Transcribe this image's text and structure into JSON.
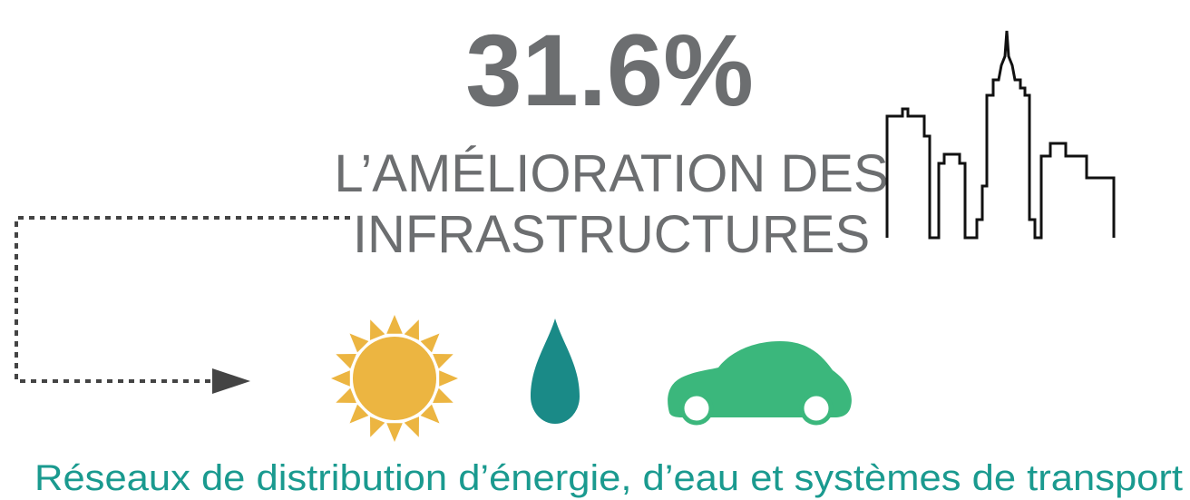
{
  "headline": {
    "figure": "31.6%",
    "lines": [
      "L’AMÉLIORATION DES",
      "INFRASTRUCTURES"
    ]
  },
  "caption": "Réseaux de distribution d’énergie, d’eau et systèmes de transport"
}
